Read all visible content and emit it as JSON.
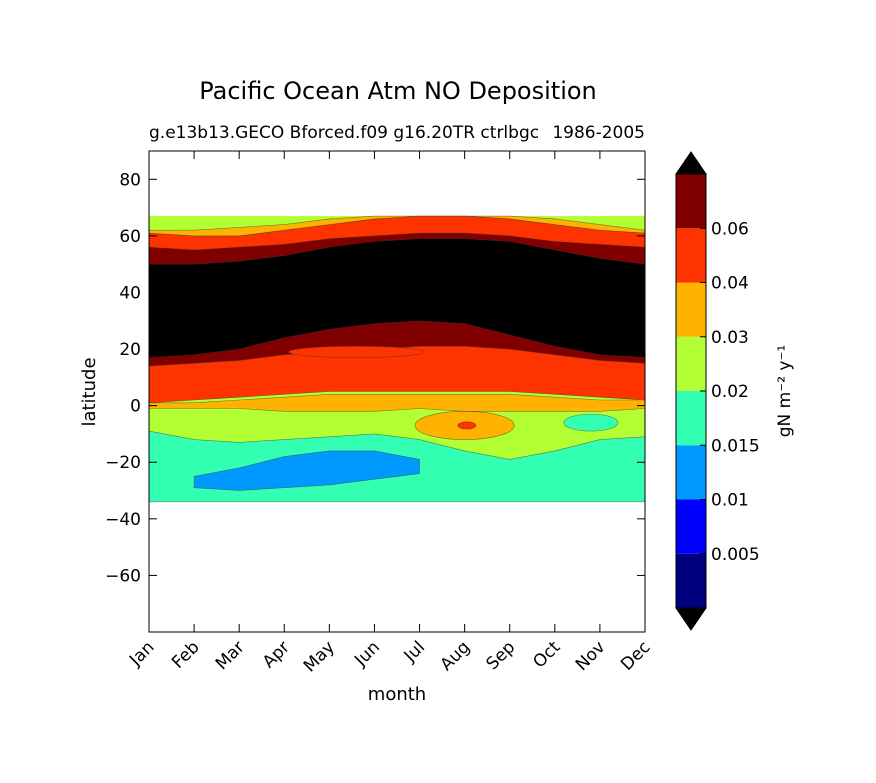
{
  "chart_data": {
    "type": "heatmap",
    "title": "Pacific Ocean Atm NO Deposition",
    "subtitle_left": "g.e13b13.GECO Bforced.f09 g16.20TR ctrlbgc",
    "subtitle_right": "1986-2005",
    "xlabel": "month",
    "ylabel": "latitude",
    "x_categories": [
      "Jan",
      "Feb",
      "Mar",
      "Apr",
      "May",
      "Jun",
      "Jul",
      "Aug",
      "Sep",
      "Oct",
      "Nov",
      "Dec"
    ],
    "xlim": [
      0,
      11
    ],
    "ylim": [
      -80,
      90
    ],
    "y_ticks": [
      80,
      60,
      40,
      20,
      0,
      -20,
      -40,
      -60
    ],
    "y_tick_labels": [
      "80",
      "60",
      "40",
      "20",
      "0",
      "−20",
      "−40",
      "−60"
    ],
    "data_lat_range": [
      -34,
      67
    ],
    "colorbar": {
      "label": "gN m⁻² y⁻¹",
      "extend": "both",
      "levels": [
        0.0,
        0.005,
        0.01,
        0.015,
        0.02,
        0.03,
        0.04,
        0.06,
        0.07
      ],
      "tick_labels": [
        "0.005",
        "0.01",
        "0.015",
        "0.02",
        "0.03",
        "0.04",
        "0.06"
      ],
      "tick_values": [
        0.005,
        0.01,
        0.015,
        0.02,
        0.03,
        0.04,
        0.06
      ],
      "under_color": "#000000",
      "over_color": "#000000",
      "colors": [
        "#00007f",
        "#0000ff",
        "#0099ff",
        "#33ffb3",
        "#b2ff33",
        "#ffb300",
        "#ff3300",
        "#800000"
      ]
    },
    "contour_levels": [
      {
        "name": "band-0.015-0.02",
        "color": "#33ffb3",
        "lower": [
          -34,
          -34,
          -34,
          -34,
          -34,
          -34,
          -34,
          -34,
          -34,
          -34,
          -34,
          -34
        ],
        "upper": [
          -9,
          -12,
          -13,
          -12,
          -11,
          -10,
          -12,
          -16,
          -19,
          -16,
          -12,
          -11
        ]
      },
      {
        "name": "band-0.01-0.015",
        "color": "#0099ff",
        "lower": [
          null,
          -29,
          -30,
          -29,
          -28,
          -26,
          -24,
          null,
          null,
          null,
          null,
          null
        ],
        "upper": [
          null,
          -25,
          -22,
          -18,
          -16,
          -16,
          -19,
          null,
          null,
          null,
          null,
          null
        ]
      },
      {
        "name": "band-0.03-0.04",
        "color": "#ffb300",
        "lower": [
          -1,
          -1,
          -1,
          -2,
          -2,
          -2,
          -1,
          -2,
          -2,
          -2,
          -2,
          -1
        ],
        "upper": [
          1,
          1,
          2,
          3,
          4,
          4,
          4,
          4,
          4,
          3,
          2,
          2
        ]
      },
      {
        "name": "band-0.04-0.06",
        "color": "#ff3300",
        "lower": [
          1,
          2,
          3,
          4,
          5,
          5,
          5,
          5,
          5,
          4,
          3,
          2
        ],
        "upper": [
          61,
          60,
          60,
          62,
          64,
          66,
          67,
          67,
          66,
          64,
          62,
          61
        ]
      },
      {
        "name": "band-0.06-0.07",
        "color": "#800000",
        "lower": [
          14,
          15,
          16,
          18,
          19,
          20,
          21,
          21,
          20,
          18,
          16,
          15
        ],
        "upper": [
          56,
          55,
          56,
          57,
          59,
          60,
          61,
          61,
          60,
          58,
          57,
          56
        ]
      },
      {
        "name": "band-over-0.07",
        "color": "#000000",
        "lower": [
          17,
          18,
          20,
          24,
          27,
          29,
          30,
          29,
          25,
          21,
          18,
          17
        ],
        "upper": [
          50,
          50,
          51,
          53,
          56,
          58,
          59,
          59,
          58,
          55,
          52,
          50
        ]
      },
      {
        "name": "band-0.03-0.04-top",
        "color": "#ffb300",
        "lower": [
          61,
          60,
          60,
          62,
          64,
          66,
          67,
          67,
          66,
          64,
          62,
          61
        ],
        "upper": [
          62,
          62,
          63,
          64,
          66,
          67,
          67,
          67,
          67,
          66,
          64,
          62
        ]
      }
    ],
    "features": [
      {
        "name": "orange-spot-aug",
        "color": "#ffb300",
        "month": 7.0,
        "lat": -7,
        "dmonth": 1.1,
        "dlat": 5
      },
      {
        "name": "red-spot-aug",
        "color": "#ff3300",
        "month": 7.05,
        "lat": -7,
        "dmonth": 0.2,
        "dlat": 1.3
      },
      {
        "name": "red-tongue-may-jul",
        "color": "#ff3300",
        "month": 4.6,
        "lat": 19,
        "dmonth": 1.5,
        "dlat": 2
      },
      {
        "name": "cyan-patch-oct",
        "color": "#33ffb3",
        "month": 9.8,
        "lat": -6,
        "dmonth": 0.6,
        "dlat": 3
      }
    ]
  }
}
